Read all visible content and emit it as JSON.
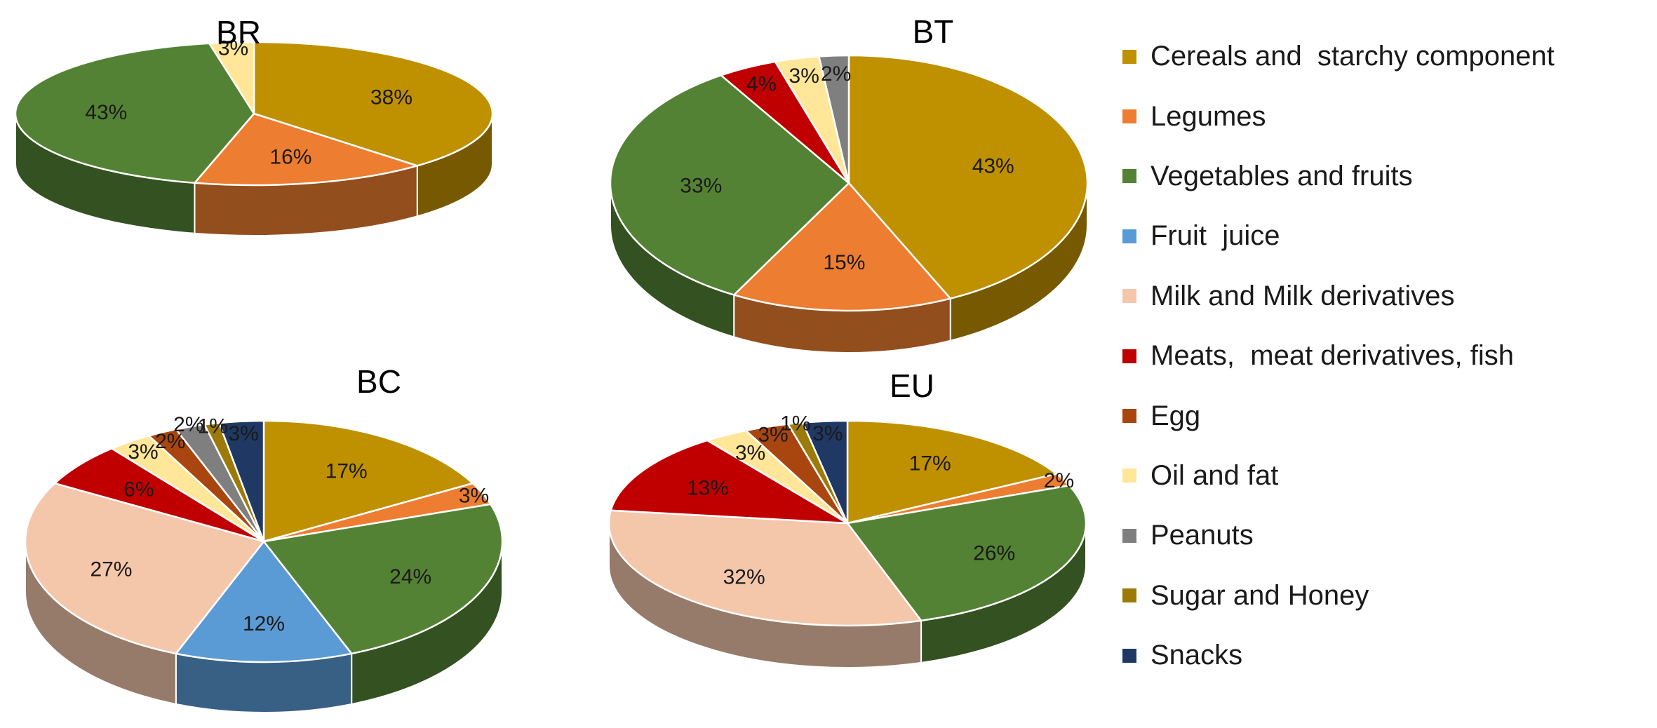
{
  "chart_data": {
    "type": "pie",
    "legend": "right",
    "categories": [
      "Cereals and  starchy component",
      "Legumes",
      "Vegetables and fruits",
      "Fruit  juice",
      "Milk and Milk derivatives",
      "Meats,  meat derivatives, fish",
      "Egg",
      "Oil and fat",
      "Peanuts",
      "Sugar and Honey",
      "Snacks"
    ],
    "colors": [
      "#BF9000",
      "#ED7D31",
      "#548235",
      "#5B9BD5",
      "#F4C7AB",
      "#C00000",
      "#A9460F",
      "#FFE699",
      "#7F7F7F",
      "#9C7A0A",
      "#203864"
    ],
    "charts": [
      {
        "title": "BR",
        "slices": [
          {
            "category": "Cereals and  starchy component",
            "value": 38,
            "label": "38%"
          },
          {
            "category": "Legumes",
            "value": 16,
            "label": "16%"
          },
          {
            "category": "Vegetables and fruits",
            "value": 43,
            "label": "43%"
          },
          {
            "category": "Oil and fat",
            "value": 3,
            "label": "3%"
          }
        ]
      },
      {
        "title": "BT",
        "slices": [
          {
            "category": "Cereals and  starchy component",
            "value": 43,
            "label": "43%"
          },
          {
            "category": "Legumes",
            "value": 15,
            "label": "15%"
          },
          {
            "category": "Vegetables and fruits",
            "value": 33,
            "label": "33%"
          },
          {
            "category": "Meats,  meat derivatives, fish",
            "value": 4,
            "label": "4%"
          },
          {
            "category": "Oil and fat",
            "value": 3,
            "label": "3%"
          },
          {
            "category": "Peanuts",
            "value": 2,
            "label": "2%"
          }
        ]
      },
      {
        "title": "BC",
        "slices": [
          {
            "category": "Cereals and  starchy component",
            "value": 17,
            "label": "17%"
          },
          {
            "category": "Legumes",
            "value": 3,
            "label": "3%"
          },
          {
            "category": "Vegetables and fruits",
            "value": 24,
            "label": "24%"
          },
          {
            "category": "Fruit  juice",
            "value": 12,
            "label": "12%"
          },
          {
            "category": "Milk and Milk derivatives",
            "value": 27,
            "label": "27%"
          },
          {
            "category": "Meats,  meat derivatives, fish",
            "value": 6,
            "label": "6%"
          },
          {
            "category": "Oil and fat",
            "value": 3,
            "label": "3%"
          },
          {
            "category": "Egg",
            "value": 2,
            "label": "2%"
          },
          {
            "category": "Peanuts",
            "value": 2,
            "label": "2%"
          },
          {
            "category": "Sugar and Honey",
            "value": 1,
            "label": "1%"
          },
          {
            "category": "Snacks",
            "value": 3,
            "label": "3%"
          }
        ]
      },
      {
        "title": "EU",
        "slices": [
          {
            "category": "Cereals and  starchy component",
            "value": 17,
            "label": "17%"
          },
          {
            "category": "Legumes",
            "value": 2,
            "label": "2%"
          },
          {
            "category": "Vegetables and fruits",
            "value": 26,
            "label": "26%"
          },
          {
            "category": "Milk and Milk derivatives",
            "value": 32,
            "label": "32%"
          },
          {
            "category": "Meats,  meat derivatives, fish",
            "value": 13,
            "label": "13%"
          },
          {
            "category": "Oil and fat",
            "value": 3,
            "label": "3%"
          },
          {
            "category": "Egg",
            "value": 3,
            "label": "3%"
          },
          {
            "category": "Sugar and Honey",
            "value": 1,
            "label": "1%"
          },
          {
            "category": "Snacks",
            "value": 3,
            "label": "3%"
          }
        ]
      }
    ]
  }
}
